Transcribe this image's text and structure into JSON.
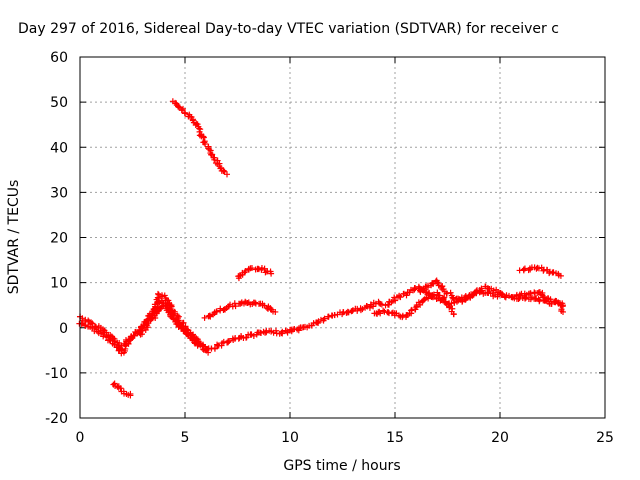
{
  "chart_data": {
    "type": "scatter",
    "title": "Day 297 of 2016, Sidereal Day-to-day VTEC variation (SDTVAR) for receiver c",
    "xlabel": "GPS time / hours",
    "ylabel": "SDTVAR / TECUs",
    "xlim": [
      0,
      25
    ],
    "ylim": [
      -20,
      60
    ],
    "xticks": [
      "0",
      "5",
      "10",
      "15",
      "20",
      "25"
    ],
    "yticks": [
      "-20",
      "-10",
      "0",
      "10",
      "20",
      "30",
      "40",
      "50",
      "60"
    ],
    "grid": true,
    "marker": "plus",
    "series": [
      {
        "color": "#ff0000",
        "tracks": [
          [
            [
              0.0,
              2.5
            ],
            [
              0.3,
              1.5
            ],
            [
              0.7,
              0.5
            ],
            [
              1.1,
              -0.5
            ],
            [
              1.5,
              -2.0
            ],
            [
              1.8,
              -3.5
            ],
            [
              2.0,
              -5.5
            ],
            [
              2.2,
              -4.0
            ],
            [
              2.5,
              -2.0
            ],
            [
              2.8,
              -1.0
            ],
            [
              3.1,
              0.5
            ],
            [
              3.4,
              2.5
            ],
            [
              3.7,
              4.5
            ],
            [
              3.9,
              6.0
            ],
            [
              4.1,
              4.5
            ],
            [
              4.4,
              2.0
            ],
            [
              4.8,
              0.0
            ],
            [
              5.2,
              -1.5
            ],
            [
              5.6,
              -3.0
            ],
            [
              6.0,
              -5.0
            ],
            [
              6.3,
              -4.5
            ],
            [
              6.8,
              -3.5
            ],
            [
              7.3,
              -2.5
            ],
            [
              7.8,
              -2.0
            ],
            [
              8.3,
              -1.5
            ],
            [
              8.8,
              -1.0
            ],
            [
              9.3,
              -1.0
            ],
            [
              9.7,
              -1.0
            ],
            [
              10.2,
              -0.5
            ],
            [
              10.7,
              0.0
            ],
            [
              11.2,
              1.0
            ],
            [
              11.7,
              2.0
            ],
            [
              12.2,
              3.0
            ],
            [
              12.7,
              3.5
            ],
            [
              13.2,
              4.0
            ],
            [
              13.7,
              4.5
            ],
            [
              14.2,
              5.5
            ],
            [
              14.6,
              5.0
            ],
            [
              15.0,
              6.5
            ],
            [
              15.5,
              7.5
            ],
            [
              16.0,
              9.0
            ],
            [
              16.4,
              8.0
            ],
            [
              16.8,
              7.0
            ],
            [
              17.2,
              6.0
            ],
            [
              17.6,
              5.5
            ],
            [
              18.0,
              6.0
            ],
            [
              18.5,
              7.0
            ],
            [
              19.0,
              8.0
            ],
            [
              19.5,
              7.5
            ],
            [
              20.0,
              7.0
            ],
            [
              20.5,
              7.0
            ],
            [
              21.0,
              6.5
            ],
            [
              21.5,
              6.5
            ],
            [
              22.0,
              6.0
            ],
            [
              22.5,
              5.5
            ],
            [
              23.0,
              5.0
            ]
          ],
          [
            [
              0.0,
              1.0
            ],
            [
              0.5,
              0.0
            ],
            [
              1.0,
              -1.0
            ],
            [
              1.5,
              -3.0
            ],
            [
              1.9,
              -5.0
            ],
            [
              2.2,
              -3.0
            ],
            [
              2.6,
              -1.5
            ],
            [
              3.0,
              0.5
            ],
            [
              3.4,
              3.0
            ],
            [
              3.8,
              7.5
            ],
            [
              4.0,
              7.0
            ],
            [
              4.3,
              5.0
            ],
            [
              4.6,
              2.5
            ],
            [
              5.0,
              0.0
            ],
            [
              5.4,
              -2.0
            ],
            [
              5.8,
              -4.0
            ],
            [
              6.1,
              -5.5
            ]
          ],
          [
            [
              1.6,
              -12.5
            ],
            [
              1.9,
              -13.5
            ],
            [
              2.2,
              -14.5
            ],
            [
              2.4,
              -15.0
            ]
          ],
          [
            [
              4.4,
              50.0
            ],
            [
              4.7,
              49.0
            ],
            [
              5.0,
              47.5
            ],
            [
              5.3,
              46.5
            ],
            [
              5.6,
              44.5
            ],
            [
              5.9,
              41.5
            ],
            [
              6.2,
              39.0
            ],
            [
              6.5,
              37.0
            ],
            [
              6.8,
              35.0
            ],
            [
              7.0,
              34.0
            ]
          ],
          [
            [
              7.5,
              11.0
            ],
            [
              7.9,
              12.5
            ],
            [
              8.3,
              13.2
            ],
            [
              8.7,
              13.0
            ],
            [
              9.1,
              12.0
            ]
          ],
          [
            [
              6.0,
              2.0
            ],
            [
              6.5,
              3.5
            ],
            [
              7.0,
              4.5
            ],
            [
              7.5,
              5.2
            ],
            [
              8.0,
              5.5
            ],
            [
              8.5,
              5.3
            ],
            [
              9.0,
              4.5
            ],
            [
              9.3,
              3.5
            ]
          ],
          [
            [
              2.9,
              -1.5
            ],
            [
              3.2,
              0.5
            ],
            [
              3.6,
              3.0
            ],
            [
              4.0,
              5.0
            ],
            [
              4.4,
              3.0
            ],
            [
              4.8,
              0.5
            ],
            [
              5.2,
              -2.0
            ],
            [
              5.6,
              -4.0
            ]
          ],
          [
            [
              14.0,
              3.0
            ],
            [
              14.5,
              3.5
            ],
            [
              15.0,
              3.0
            ],
            [
              15.4,
              2.5
            ],
            [
              15.8,
              3.5
            ],
            [
              16.2,
              5.5
            ],
            [
              16.6,
              7.0
            ],
            [
              17.0,
              7.5
            ],
            [
              17.4,
              6.0
            ],
            [
              17.8,
              3.0
            ]
          ],
          [
            [
              16.2,
              8.0
            ],
            [
              16.6,
              9.5
            ],
            [
              17.0,
              10.5
            ],
            [
              17.3,
              8.5
            ],
            [
              17.7,
              7.0
            ],
            [
              18.1,
              6.0
            ],
            [
              18.5,
              6.5
            ],
            [
              18.9,
              8.0
            ],
            [
              19.3,
              9.0
            ],
            [
              19.7,
              8.5
            ],
            [
              20.1,
              7.5
            ]
          ],
          [
            [
              21.0,
              12.5
            ],
            [
              21.4,
              13.0
            ],
            [
              21.8,
              13.2
            ],
            [
              22.2,
              12.8
            ],
            [
              22.6,
              12.0
            ],
            [
              22.9,
              11.5
            ]
          ],
          [
            [
              20.8,
              7.0
            ],
            [
              21.3,
              7.5
            ],
            [
              21.8,
              8.0
            ],
            [
              22.1,
              7.0
            ],
            [
              22.5,
              6.0
            ],
            [
              22.9,
              5.5
            ],
            [
              23.0,
              3.5
            ]
          ]
        ]
      }
    ]
  }
}
